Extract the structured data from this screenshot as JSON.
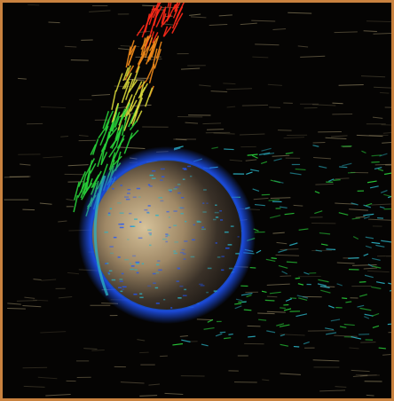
{
  "image": {
    "subject": "planet-with-streamlines",
    "frame_color": "#c9823f",
    "background_color": "#050403",
    "palette": {
      "planet_surface": "#b8a07a",
      "planet_shadow": "#1d1a16",
      "flow_blue": "#1f56ff",
      "flow_cyan": "#2bb4c6",
      "flow_green": "#29d13a",
      "flow_yellow": "#d7d63a",
      "flow_orange": "#f08a1b",
      "flow_red": "#ff2a1a",
      "wind_tan": "#cdbb8a"
    }
  }
}
